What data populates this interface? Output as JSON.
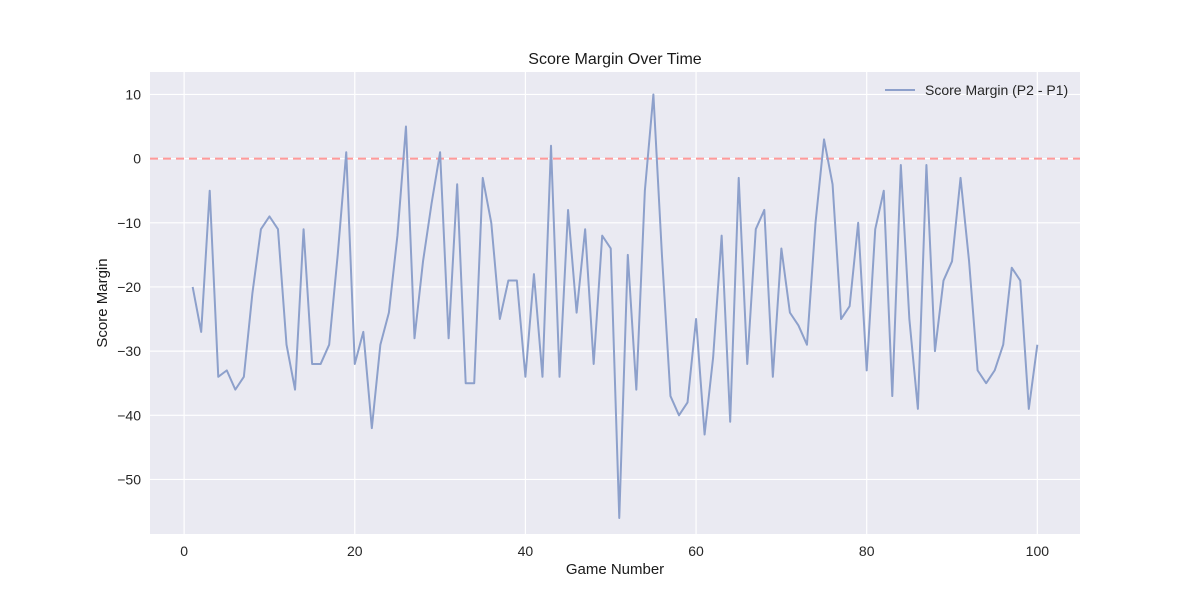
{
  "chart_data": {
    "type": "line",
    "title": "Score Margin Over Time",
    "xlabel": "Game Number",
    "ylabel": "Score Margin",
    "xlim": [
      -4,
      105
    ],
    "ylim": [
      -58.5,
      13.5
    ],
    "xticks": [
      0,
      20,
      40,
      60,
      80,
      100
    ],
    "yticks": [
      10,
      0,
      -10,
      -20,
      -30,
      -40,
      -50
    ],
    "ytick_labels": [
      "10",
      "0",
      "−10",
      "−20",
      "−30",
      "−40",
      "−50"
    ],
    "grid": true,
    "legend_position": "top-right",
    "background_color": "#eaeaf2",
    "series": [
      {
        "name": "Score Margin (P2 - P1)",
        "color": "#8da0cb",
        "x": [
          1,
          2,
          3,
          4,
          5,
          6,
          7,
          8,
          9,
          10,
          11,
          12,
          13,
          14,
          15,
          16,
          17,
          18,
          19,
          20,
          21,
          22,
          23,
          24,
          25,
          26,
          27,
          28,
          29,
          30,
          31,
          32,
          33,
          34,
          35,
          36,
          37,
          38,
          39,
          40,
          41,
          42,
          43,
          44,
          45,
          46,
          47,
          48,
          49,
          50,
          51,
          52,
          53,
          54,
          55,
          56,
          57,
          58,
          59,
          60,
          61,
          62,
          63,
          64,
          65,
          66,
          67,
          68,
          69,
          70,
          71,
          72,
          73,
          74,
          75,
          76,
          77,
          78,
          79,
          80,
          81,
          82,
          83,
          84,
          85,
          86,
          87,
          88,
          89,
          90,
          91,
          92,
          93,
          94,
          95,
          96,
          97,
          98,
          99,
          100
        ],
        "values": [
          -20,
          -27,
          -5,
          -34,
          -33,
          -36,
          -34,
          -21,
          -11,
          -9,
          -11,
          -29,
          -36,
          -11,
          -32,
          -32,
          -29,
          -15,
          1,
          -32,
          -27,
          -42,
          -29,
          -24,
          -12,
          5,
          -28,
          -16,
          -7,
          1,
          -28,
          -4,
          -35,
          -35,
          -3,
          -10,
          -25,
          -19,
          -19,
          -34,
          -18,
          -34,
          2,
          -34,
          -8,
          -24,
          -11,
          -32,
          -12,
          -14,
          -56,
          -15,
          -36,
          -5,
          10,
          -15,
          -37,
          -40,
          -38,
          -25,
          -43,
          -31,
          -12,
          -41,
          -3,
          -32,
          -11,
          -8,
          -34,
          -14,
          -24,
          -26,
          -29,
          -10,
          3,
          -4,
          -25,
          -23,
          -10,
          -33,
          -11,
          -5,
          -37,
          -1,
          -25,
          -39,
          -1,
          -30,
          -19,
          -16,
          -3,
          -16,
          -33,
          -35,
          -33,
          -29,
          -17,
          -19,
          -39,
          -29
        ]
      }
    ],
    "reference_line": {
      "y": 0,
      "color": "#ff9999",
      "style": "dashed"
    }
  }
}
